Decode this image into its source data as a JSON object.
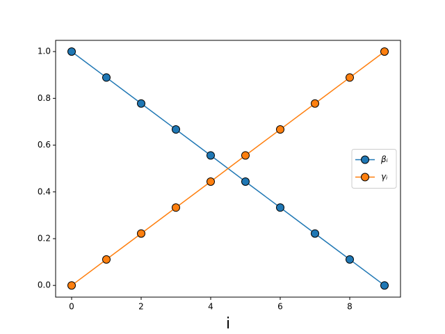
{
  "chart_data": {
    "type": "line",
    "x_label": "i",
    "x": [
      0,
      1,
      2,
      3,
      4,
      5,
      6,
      7,
      8,
      9
    ],
    "series": [
      {
        "name": "βᵢ",
        "color": "#1f77b4",
        "values": [
          1.0,
          0.889,
          0.778,
          0.667,
          0.556,
          0.444,
          0.333,
          0.222,
          0.111,
          0.0
        ]
      },
      {
        "name": "γᵢ",
        "color": "#ff7f0e",
        "values": [
          0.0,
          0.111,
          0.222,
          0.333,
          0.444,
          0.556,
          0.667,
          0.778,
          0.889,
          1.0
        ]
      }
    ],
    "xlim": [
      -0.46,
      9.46
    ],
    "ylim": [
      -0.05,
      1.048
    ],
    "xticks": [
      0,
      2,
      4,
      6,
      8
    ],
    "yticks": [
      {
        "value": 0,
        "label": "0.0"
      },
      0.2,
      0.4,
      0.6,
      0.8,
      {
        "value": 1,
        "label": "1.0"
      }
    ],
    "legend": "center right"
  }
}
